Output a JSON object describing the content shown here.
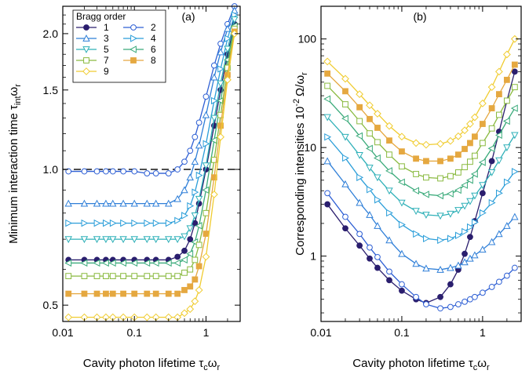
{
  "chart_data": [
    {
      "type": "line",
      "panel_label": "(a)",
      "xlabel": "Cavity photon lifetime τ",
      "xlabel_sub": "c",
      "xlabel_tail": "ω",
      "xlabel_tail_sub": "r",
      "ylabel": "Minimum interaction time τ",
      "ylabel_sub": "int",
      "ylabel_tail": "ω",
      "ylabel_tail_sub": "r",
      "xscale": "log",
      "yscale": "log",
      "xlim": [
        0.01,
        3
      ],
      "ylim": [
        0.46,
        2.3
      ],
      "xticks": [
        0.01,
        0.1,
        1
      ],
      "xtick_labels": [
        "0.01",
        "0.1",
        "1"
      ],
      "yticks": [
        0.5,
        1.0,
        1.5,
        2.0
      ],
      "ytick_labels": [
        "0.5",
        "1.0",
        "1.5",
        "2.0"
      ],
      "reference_line": {
        "y": 1.0,
        "style": "dashed"
      },
      "legend": {
        "title": "Bragg order",
        "placement": "top-left",
        "columns": 2
      },
      "series": [
        {
          "name": "1",
          "color": "#2a1e6e",
          "marker": "circle-filled",
          "x": [
            0.012,
            0.02,
            0.03,
            0.04,
            0.05,
            0.07,
            0.1,
            0.15,
            0.2,
            0.3,
            0.4,
            0.5,
            0.6,
            0.7,
            0.8,
            1.0,
            1.3,
            1.6,
            2.0,
            2.5
          ],
          "y": [
            0.63,
            0.63,
            0.63,
            0.63,
            0.63,
            0.63,
            0.63,
            0.63,
            0.63,
            0.63,
            0.64,
            0.66,
            0.7,
            0.76,
            0.84,
            1.0,
            1.25,
            1.5,
            1.8,
            2.1
          ]
        },
        {
          "name": "2",
          "color": "#2e5fd4",
          "marker": "circle-open",
          "x": [
            0.012,
            0.02,
            0.03,
            0.04,
            0.05,
            0.07,
            0.1,
            0.15,
            0.2,
            0.3,
            0.4,
            0.5,
            0.6,
            0.7,
            0.8,
            1.0,
            1.3,
            1.6,
            2.0,
            2.5
          ],
          "y": [
            0.99,
            0.99,
            0.99,
            0.99,
            0.99,
            0.99,
            0.99,
            0.98,
            0.98,
            0.98,
            1.0,
            1.04,
            1.1,
            1.18,
            1.27,
            1.45,
            1.7,
            1.9,
            2.1,
            2.3
          ]
        },
        {
          "name": "3",
          "color": "#2f7fd8",
          "marker": "triangle-up-open",
          "x": [
            0.012,
            0.02,
            0.03,
            0.04,
            0.05,
            0.07,
            0.1,
            0.15,
            0.2,
            0.3,
            0.4,
            0.5,
            0.6,
            0.7,
            0.8,
            1.0,
            1.3,
            1.6,
            2.0,
            2.5
          ],
          "y": [
            0.84,
            0.84,
            0.84,
            0.84,
            0.84,
            0.84,
            0.84,
            0.84,
            0.84,
            0.84,
            0.86,
            0.9,
            0.96,
            1.04,
            1.13,
            1.32,
            1.6,
            1.82,
            2.05,
            2.25
          ]
        },
        {
          "name": "4",
          "color": "#2b9ed9",
          "marker": "triangle-right-open",
          "x": [
            0.012,
            0.02,
            0.03,
            0.04,
            0.05,
            0.07,
            0.1,
            0.15,
            0.2,
            0.3,
            0.4,
            0.5,
            0.6,
            0.7,
            0.8,
            1.0,
            1.3,
            1.6,
            2.0,
            2.5
          ],
          "y": [
            0.76,
            0.76,
            0.76,
            0.76,
            0.76,
            0.76,
            0.76,
            0.76,
            0.76,
            0.76,
            0.77,
            0.79,
            0.83,
            0.89,
            0.97,
            1.14,
            1.42,
            1.67,
            1.95,
            2.2
          ]
        },
        {
          "name": "5",
          "color": "#2fb0b8",
          "marker": "triangle-down-open",
          "x": [
            0.012,
            0.02,
            0.03,
            0.04,
            0.05,
            0.07,
            0.1,
            0.15,
            0.2,
            0.3,
            0.4,
            0.5,
            0.6,
            0.7,
            0.8,
            1.0,
            1.3,
            1.6,
            2.0,
            2.5
          ],
          "y": [
            0.7,
            0.7,
            0.7,
            0.7,
            0.7,
            0.7,
            0.7,
            0.7,
            0.7,
            0.7,
            0.7,
            0.71,
            0.74,
            0.79,
            0.86,
            1.02,
            1.3,
            1.55,
            1.85,
            2.15
          ]
        },
        {
          "name": "6",
          "color": "#3aaa7a",
          "marker": "triangle-left-open",
          "x": [
            0.012,
            0.02,
            0.03,
            0.04,
            0.05,
            0.07,
            0.1,
            0.15,
            0.2,
            0.3,
            0.4,
            0.5,
            0.6,
            0.7,
            0.8,
            1.0,
            1.3,
            1.6,
            2.0,
            2.5
          ],
          "y": [
            0.62,
            0.62,
            0.62,
            0.62,
            0.62,
            0.62,
            0.62,
            0.62,
            0.62,
            0.62,
            0.62,
            0.63,
            0.65,
            0.69,
            0.75,
            0.9,
            1.16,
            1.42,
            1.75,
            2.08
          ]
        },
        {
          "name": "7",
          "color": "#8aba40",
          "marker": "square-open",
          "x": [
            0.012,
            0.02,
            0.03,
            0.04,
            0.05,
            0.07,
            0.1,
            0.15,
            0.2,
            0.3,
            0.4,
            0.5,
            0.6,
            0.7,
            0.8,
            1.0,
            1.3,
            1.6,
            2.0,
            2.5
          ],
          "y": [
            0.58,
            0.58,
            0.58,
            0.58,
            0.58,
            0.58,
            0.58,
            0.58,
            0.58,
            0.58,
            0.58,
            0.59,
            0.6,
            0.63,
            0.68,
            0.8,
            1.05,
            1.32,
            1.68,
            2.05
          ]
        },
        {
          "name": "8",
          "color": "#e5a840",
          "marker": "square-filled",
          "x": [
            0.012,
            0.02,
            0.03,
            0.04,
            0.05,
            0.07,
            0.1,
            0.15,
            0.2,
            0.3,
            0.4,
            0.5,
            0.6,
            0.7,
            0.8,
            1.0,
            1.3,
            1.6,
            2.0,
            2.5
          ],
          "y": [
            0.53,
            0.53,
            0.53,
            0.53,
            0.53,
            0.53,
            0.53,
            0.53,
            0.53,
            0.53,
            0.53,
            0.54,
            0.55,
            0.57,
            0.61,
            0.72,
            0.96,
            1.25,
            1.62,
            2.02
          ]
        },
        {
          "name": "9",
          "color": "#f0cc30",
          "marker": "diamond-open",
          "x": [
            0.012,
            0.02,
            0.03,
            0.04,
            0.05,
            0.07,
            0.1,
            0.15,
            0.2,
            0.3,
            0.4,
            0.5,
            0.6,
            0.7,
            0.8,
            1.0,
            1.3,
            1.6,
            2.0,
            2.5
          ],
          "y": [
            0.47,
            0.47,
            0.47,
            0.47,
            0.47,
            0.47,
            0.47,
            0.47,
            0.47,
            0.47,
            0.47,
            0.48,
            0.49,
            0.51,
            0.54,
            0.64,
            0.88,
            1.18,
            1.58,
            2.0
          ]
        }
      ]
    },
    {
      "type": "line",
      "panel_label": "(b)",
      "xlabel": "Cavity photon lifetime τ",
      "xlabel_sub": "c",
      "xlabel_tail": "ω",
      "xlabel_tail_sub": "r",
      "ylabel": "Corresponding intensities 10",
      "ylabel_sup": "-2",
      "ylabel_tail": "Ω/ω",
      "ylabel_tail_sub": "r",
      "xscale": "log",
      "yscale": "log",
      "xlim": [
        0.01,
        3
      ],
      "ylim": [
        0.25,
        200
      ],
      "xticks": [
        0.01,
        0.1,
        1
      ],
      "xtick_labels": [
        "0.01",
        "0.1",
        "1"
      ],
      "yticks": [
        1,
        10,
        100
      ],
      "ytick_labels": [
        "1",
        "10",
        "100"
      ],
      "series": [
        {
          "name": "1",
          "color": "#2a1e6e",
          "marker": "circle-filled",
          "x": [
            0.012,
            0.02,
            0.03,
            0.04,
            0.05,
            0.07,
            0.1,
            0.15,
            0.2,
            0.3,
            0.4,
            0.5,
            0.6,
            0.7,
            0.8,
            1.0,
            1.3,
            1.6,
            2.0,
            2.5
          ],
          "y": [
            3.0,
            1.8,
            1.25,
            0.95,
            0.78,
            0.6,
            0.48,
            0.4,
            0.37,
            0.42,
            0.55,
            0.75,
            1.05,
            1.5,
            2.1,
            3.8,
            7.5,
            14,
            27,
            50
          ]
        },
        {
          "name": "2",
          "color": "#2e5fd4",
          "marker": "circle-open",
          "x": [
            0.012,
            0.02,
            0.03,
            0.04,
            0.05,
            0.07,
            0.1,
            0.15,
            0.2,
            0.3,
            0.4,
            0.5,
            0.6,
            0.7,
            0.8,
            1.0,
            1.3,
            1.6,
            2.0,
            2.5
          ],
          "y": [
            3.8,
            2.3,
            1.6,
            1.2,
            0.98,
            0.72,
            0.55,
            0.42,
            0.36,
            0.33,
            0.34,
            0.36,
            0.38,
            0.4,
            0.42,
            0.46,
            0.52,
            0.58,
            0.66,
            0.78
          ]
        },
        {
          "name": "3",
          "color": "#2f7fd8",
          "marker": "triangle-up-open",
          "x": [
            0.012,
            0.02,
            0.03,
            0.04,
            0.05,
            0.07,
            0.1,
            0.15,
            0.2,
            0.3,
            0.4,
            0.5,
            0.6,
            0.7,
            0.8,
            1.0,
            1.3,
            1.6,
            2.0,
            2.5
          ],
          "y": [
            7.5,
            4.6,
            3.1,
            2.4,
            1.9,
            1.4,
            1.05,
            0.85,
            0.77,
            0.75,
            0.78,
            0.82,
            0.88,
            0.95,
            1.02,
            1.15,
            1.35,
            1.6,
            1.9,
            2.3
          ]
        },
        {
          "name": "4",
          "color": "#2b9ed9",
          "marker": "triangle-right-open",
          "x": [
            0.012,
            0.02,
            0.03,
            0.04,
            0.05,
            0.07,
            0.1,
            0.15,
            0.2,
            0.3,
            0.4,
            0.5,
            0.6,
            0.7,
            0.8,
            1.0,
            1.3,
            1.6,
            2.0,
            2.5
          ],
          "y": [
            12.5,
            8.0,
            5.3,
            4.1,
            3.3,
            2.5,
            1.95,
            1.6,
            1.45,
            1.4,
            1.45,
            1.55,
            1.68,
            1.85,
            2.05,
            2.5,
            3.1,
            3.8,
            4.8,
            6.0
          ]
        },
        {
          "name": "5",
          "color": "#2fb0b8",
          "marker": "triangle-down-open",
          "x": [
            0.012,
            0.02,
            0.03,
            0.04,
            0.05,
            0.07,
            0.1,
            0.15,
            0.2,
            0.3,
            0.4,
            0.5,
            0.6,
            0.7,
            0.8,
            1.0,
            1.3,
            1.6,
            2.0,
            2.5
          ],
          "y": [
            19,
            12.5,
            8.5,
            6.5,
            5.3,
            4.0,
            3.1,
            2.6,
            2.4,
            2.35,
            2.45,
            2.65,
            2.9,
            3.2,
            3.6,
            4.5,
            5.9,
            7.6,
            10,
            13
          ]
        },
        {
          "name": "6",
          "color": "#3aaa7a",
          "marker": "triangle-left-open",
          "x": [
            0.012,
            0.02,
            0.03,
            0.04,
            0.05,
            0.07,
            0.1,
            0.15,
            0.2,
            0.3,
            0.4,
            0.5,
            0.6,
            0.7,
            0.8,
            1.0,
            1.3,
            1.6,
            2.0,
            2.5
          ],
          "y": [
            28,
            18.5,
            12.8,
            9.8,
            8.0,
            6.1,
            4.8,
            4.0,
            3.7,
            3.6,
            3.75,
            4.05,
            4.5,
            5.0,
            5.7,
            7.3,
            9.8,
            13,
            17.5,
            23
          ]
        },
        {
          "name": "7",
          "color": "#8aba40",
          "marker": "square-open",
          "x": [
            0.012,
            0.02,
            0.03,
            0.04,
            0.05,
            0.07,
            0.1,
            0.15,
            0.2,
            0.3,
            0.4,
            0.5,
            0.6,
            0.7,
            0.8,
            1.0,
            1.3,
            1.6,
            2.0,
            2.5
          ],
          "y": [
            37,
            25,
            17.5,
            13.5,
            11.2,
            8.6,
            6.7,
            5.7,
            5.3,
            5.2,
            5.45,
            5.9,
            6.6,
            7.4,
            8.4,
            11,
            15,
            20,
            27,
            36
          ]
        },
        {
          "name": "8",
          "color": "#e5a840",
          "marker": "square-filled",
          "x": [
            0.012,
            0.02,
            0.03,
            0.04,
            0.05,
            0.07,
            0.1,
            0.15,
            0.2,
            0.3,
            0.4,
            0.5,
            0.6,
            0.7,
            0.8,
            1.0,
            1.3,
            1.6,
            2.0,
            2.5
          ],
          "y": [
            48,
            33,
            23.5,
            18.3,
            15.2,
            11.6,
            9.2,
            7.9,
            7.5,
            7.5,
            7.9,
            8.6,
            9.7,
            11,
            12.6,
            16.5,
            23,
            31,
            42,
            58
          ]
        },
        {
          "name": "9",
          "color": "#f0cc30",
          "marker": "diamond-open",
          "x": [
            0.012,
            0.02,
            0.03,
            0.04,
            0.05,
            0.07,
            0.1,
            0.15,
            0.2,
            0.3,
            0.4,
            0.5,
            0.6,
            0.7,
            0.8,
            1.0,
            1.3,
            1.6,
            2.0,
            2.5
          ],
          "y": [
            62,
            43,
            31,
            24.5,
            20.5,
            15.8,
            12.6,
            11.0,
            10.6,
            10.8,
            11.5,
            12.7,
            14.4,
            16.5,
            19,
            25.5,
            36,
            50,
            72,
            100
          ]
        }
      ]
    }
  ]
}
